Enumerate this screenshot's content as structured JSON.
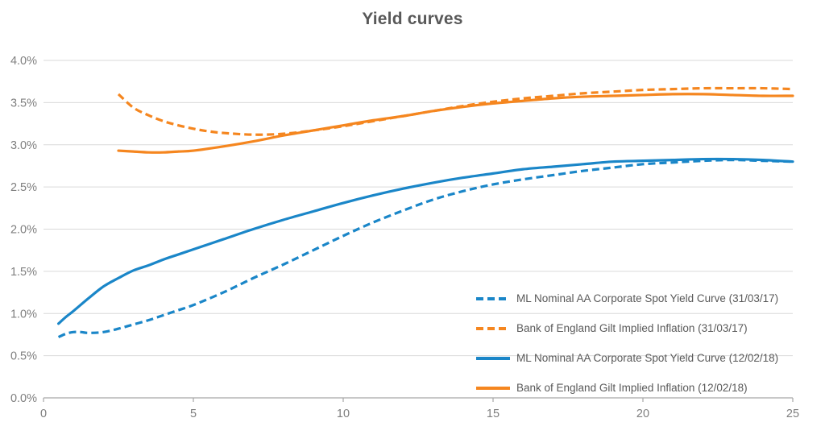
{
  "title": "Yield curves",
  "colors": {
    "blue": "#1a86c8",
    "orange": "#f5861f",
    "grid": "#d9d9d9",
    "axis": "#a6a6a6",
    "tick_label": "#7f7f7f",
    "title_text": "#595959",
    "legend_text": "#595959",
    "background": "#ffffff"
  },
  "chart_data": {
    "type": "line",
    "title": "Yield curves",
    "xlabel": "",
    "ylabel": "",
    "xlim": [
      0,
      25
    ],
    "ylim": [
      0,
      4
    ],
    "grid": "horizontal-only",
    "legend_position": "inside-lower-right",
    "x_ticks": [
      {
        "label": "0",
        "value": 0
      },
      {
        "label": "5",
        "value": 5
      },
      {
        "label": "10",
        "value": 10
      },
      {
        "label": "15",
        "value": 15
      },
      {
        "label": "20",
        "value": 20
      },
      {
        "label": "25",
        "value": 25
      }
    ],
    "y_ticks": [
      {
        "label": "0.0%",
        "value": 0.0
      },
      {
        "label": "0.5%",
        "value": 0.5
      },
      {
        "label": "1.0%",
        "value": 1.0
      },
      {
        "label": "1.5%",
        "value": 1.5
      },
      {
        "label": "2.0%",
        "value": 2.0
      },
      {
        "label": "2.5%",
        "value": 2.5
      },
      {
        "label": "3.0%",
        "value": 3.0
      },
      {
        "label": "3.5%",
        "value": 3.5
      },
      {
        "label": "4.0%",
        "value": 4.0
      }
    ],
    "series": [
      {
        "name": "ML Nominal AA Corporate Spot Yield Curve (31/03/17)",
        "color_key": "blue",
        "style": "dashed",
        "x": [
          0.5,
          0.75,
          1,
          1.25,
          1.5,
          2,
          2.5,
          3,
          3.5,
          4,
          4.5,
          5,
          6,
          7,
          8,
          9,
          10,
          11,
          12,
          13,
          14,
          15,
          16,
          17,
          18,
          19,
          20,
          21,
          22,
          23,
          24,
          25
        ],
        "y": [
          0.72,
          0.76,
          0.78,
          0.78,
          0.77,
          0.78,
          0.82,
          0.87,
          0.92,
          0.98,
          1.04,
          1.1,
          1.25,
          1.42,
          1.58,
          1.75,
          1.92,
          2.08,
          2.22,
          2.35,
          2.45,
          2.53,
          2.59,
          2.64,
          2.69,
          2.73,
          2.77,
          2.79,
          2.81,
          2.82,
          2.81,
          2.8
        ]
      },
      {
        "name": "Bank of England Gilt Implied Inflation (31/03/17)",
        "color_key": "orange",
        "style": "dashed",
        "x": [
          2.5,
          3,
          3.5,
          4,
          4.5,
          5,
          5.5,
          6,
          7,
          8,
          9,
          10,
          11,
          12,
          13,
          14,
          15,
          16,
          17,
          18,
          19,
          20,
          21,
          22,
          23,
          24,
          25
        ],
        "y": [
          3.6,
          3.44,
          3.35,
          3.28,
          3.23,
          3.19,
          3.16,
          3.14,
          3.12,
          3.13,
          3.17,
          3.22,
          3.28,
          3.34,
          3.4,
          3.46,
          3.51,
          3.55,
          3.58,
          3.61,
          3.63,
          3.65,
          3.66,
          3.67,
          3.67,
          3.67,
          3.66
        ]
      },
      {
        "name": "ML Nominal AA Corporate Spot Yield Curve (12/02/18)",
        "color_key": "blue",
        "style": "solid",
        "x": [
          0.5,
          0.75,
          1,
          1.5,
          2,
          2.5,
          3,
          3.5,
          4,
          4.5,
          5,
          6,
          7,
          8,
          9,
          10,
          11,
          12,
          13,
          14,
          15,
          16,
          17,
          18,
          19,
          20,
          21,
          22,
          23,
          24,
          25
        ],
        "y": [
          0.88,
          0.96,
          1.03,
          1.18,
          1.32,
          1.42,
          1.51,
          1.57,
          1.64,
          1.7,
          1.76,
          1.88,
          2.0,
          2.11,
          2.21,
          2.31,
          2.4,
          2.48,
          2.55,
          2.61,
          2.66,
          2.71,
          2.74,
          2.77,
          2.8,
          2.81,
          2.82,
          2.83,
          2.83,
          2.82,
          2.8
        ]
      },
      {
        "name": "Bank of England Gilt Implied Inflation (12/02/18)",
        "color_key": "orange",
        "style": "solid",
        "x": [
          2.5,
          3,
          3.5,
          4,
          4.5,
          5,
          6,
          7,
          8,
          9,
          10,
          11,
          12,
          13,
          14,
          15,
          16,
          17,
          18,
          19,
          20,
          21,
          22,
          23,
          24,
          25
        ],
        "y": [
          2.93,
          2.92,
          2.91,
          2.91,
          2.92,
          2.93,
          2.98,
          3.04,
          3.11,
          3.17,
          3.23,
          3.29,
          3.34,
          3.4,
          3.45,
          3.49,
          3.52,
          3.55,
          3.57,
          3.58,
          3.59,
          3.6,
          3.6,
          3.59,
          3.58,
          3.58
        ]
      }
    ]
  }
}
